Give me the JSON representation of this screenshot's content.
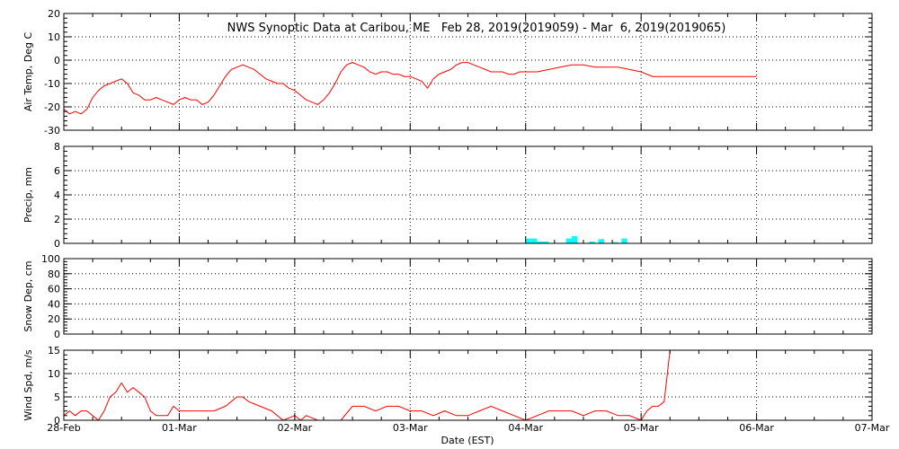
{
  "chart_data": {
    "type": "line",
    "title": "NWS Synoptic Data at Caribou, ME   Feb 28, 2019(2019059) - Mar  6, 2019(2019065)",
    "xlabel": "Date (EST)",
    "x_tick_labels": [
      "28-Feb",
      "01-Mar",
      "02-Mar",
      "03-Mar",
      "04-Mar",
      "05-Mar",
      "06-Mar",
      "07-Mar"
    ],
    "x_range_days": [
      0,
      7
    ],
    "panels": [
      {
        "name": "air-temp",
        "type": "line",
        "ylabel": "Air Temp, Deg C",
        "ylim": [
          -30,
          20
        ],
        "yticks": [
          -30,
          -20,
          -10,
          0,
          10,
          20
        ],
        "color": "#ff0000",
        "x": [
          0.0,
          0.05,
          0.1,
          0.15,
          0.2,
          0.25,
          0.3,
          0.35,
          0.4,
          0.45,
          0.5,
          0.55,
          0.6,
          0.65,
          0.7,
          0.75,
          0.8,
          0.85,
          0.9,
          0.95,
          1.0,
          1.05,
          1.1,
          1.15,
          1.2,
          1.25,
          1.3,
          1.35,
          1.4,
          1.45,
          1.5,
          1.55,
          1.6,
          1.65,
          1.7,
          1.75,
          1.8,
          1.85,
          1.9,
          1.95,
          2.0,
          2.05,
          2.1,
          2.15,
          2.2,
          2.25,
          2.3,
          2.35,
          2.4,
          2.45,
          2.5,
          2.55,
          2.6,
          2.65,
          2.7,
          2.75,
          2.8,
          2.85,
          2.9,
          2.95,
          3.0,
          3.05,
          3.1,
          3.15,
          3.2,
          3.25,
          3.3,
          3.35,
          3.4,
          3.45,
          3.5,
          3.55,
          3.6,
          3.65,
          3.7,
          3.75,
          3.8,
          3.85,
          3.9,
          3.95,
          4.0,
          4.1,
          4.2,
          4.3,
          4.4,
          4.5,
          4.6,
          4.7,
          4.8,
          4.9,
          5.0,
          5.1,
          5.2,
          5.5,
          6.0
        ],
        "y": [
          -21,
          -23,
          -22,
          -23,
          -21,
          -16,
          -13,
          -11,
          -10,
          -9,
          -8,
          -10,
          -14,
          -15,
          -17,
          -17,
          -16,
          -17,
          -18,
          -19,
          -17,
          -16,
          -17,
          -17,
          -19,
          -18,
          -15,
          -11,
          -7,
          -4,
          -3,
          -2,
          -3,
          -4,
          -6,
          -8,
          -9,
          -10,
          -10,
          -12,
          -13,
          -15,
          -17,
          -18,
          -19,
          -17,
          -14,
          -10,
          -5,
          -2,
          -1,
          -2,
          -3,
          -5,
          -6,
          -5,
          -5,
          -6,
          -6,
          -7,
          -7,
          -8,
          -9,
          -12,
          -8,
          -6,
          -5,
          -4,
          -2,
          -1,
          -1,
          -2,
          -3,
          -4,
          -5,
          -5,
          -5,
          -6,
          -6,
          -5,
          -5,
          -5,
          -4,
          -3,
          -2,
          -2,
          -3,
          -3,
          -3,
          -4,
          -5,
          -7,
          -7,
          -7,
          -7
        ],
        "x_note": "days since 28-Feb 00:00 EST"
      },
      {
        "name": "precip",
        "type": "bar",
        "ylabel": "Precip, mm",
        "ylim": [
          0,
          8
        ],
        "yticks": [
          0,
          2,
          4,
          6,
          8
        ],
        "color": "#00ffff",
        "x": [
          4.0,
          4.05,
          4.1,
          4.15,
          4.35,
          4.4,
          4.55,
          4.63,
          4.75,
          4.83
        ],
        "y": [
          0.4,
          0.4,
          0.15,
          0.15,
          0.4,
          0.6,
          0.15,
          0.35,
          0.1,
          0.4
        ],
        "bar_width_days": 0.05
      },
      {
        "name": "snow-depth",
        "type": "line",
        "ylabel": "Snow Dep, cm",
        "ylim": [
          0,
          100
        ],
        "yticks": [
          0,
          20,
          40,
          60,
          80,
          100
        ],
        "color": "#ff0000",
        "x": [],
        "y": []
      },
      {
        "name": "wind-speed",
        "type": "line",
        "ylabel": "Wind Spd, m/s",
        "ylim": [
          0,
          15
        ],
        "yticks": [
          0,
          5,
          10,
          15
        ],
        "color": "#ff0000",
        "x": [
          0.0,
          0.05,
          0.1,
          0.15,
          0.2,
          0.25,
          0.3,
          0.35,
          0.4,
          0.45,
          0.5,
          0.55,
          0.6,
          0.65,
          0.7,
          0.75,
          0.8,
          0.85,
          0.9,
          0.95,
          1.0,
          1.05,
          1.1,
          1.2,
          1.3,
          1.4,
          1.5,
          1.55,
          1.6,
          1.7,
          1.8,
          1.9,
          2.0,
          2.05,
          2.1,
          2.2,
          2.3,
          2.4,
          2.5,
          2.6,
          2.7,
          2.8,
          2.9,
          3.0,
          3.1,
          3.2,
          3.3,
          3.4,
          3.5,
          3.6,
          3.7,
          3.8,
          3.9,
          4.0,
          4.1,
          4.2,
          4.3,
          4.4,
          4.5,
          4.6,
          4.7,
          4.8,
          4.9,
          5.0,
          5.05,
          5.1,
          5.15,
          5.2,
          5.25
        ],
        "y": [
          1,
          2,
          1,
          2,
          2,
          1,
          0,
          2,
          5,
          6,
          8,
          6,
          7,
          6,
          5,
          2,
          1,
          1,
          1,
          3,
          2,
          2,
          2,
          2,
          2,
          3,
          5,
          5,
          4,
          3,
          2,
          0,
          1,
          0,
          1,
          0,
          0,
          0,
          3,
          3,
          2,
          3,
          3,
          2,
          2,
          1,
          2,
          1,
          1,
          2,
          3,
          2,
          1,
          0,
          1,
          2,
          2,
          2,
          1,
          2,
          2,
          1,
          1,
          0,
          2,
          3,
          3,
          4,
          15
        ]
      }
    ]
  }
}
